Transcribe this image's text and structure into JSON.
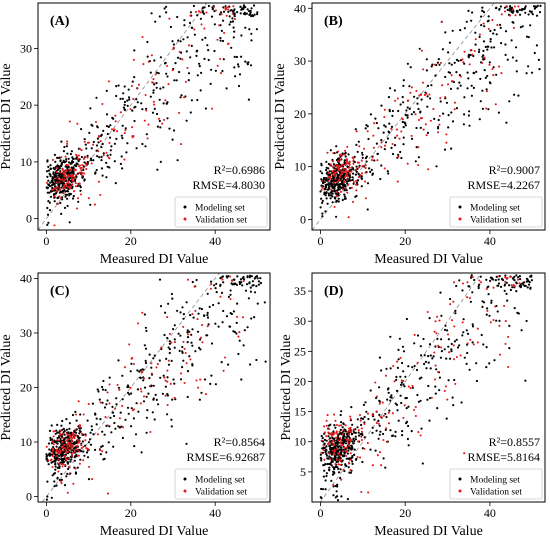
{
  "chart_data": [
    {
      "type": "scatter",
      "panel_label": "(A)",
      "xlabel": "Measured DI Value",
      "ylabel": "Predicted DI Value",
      "xlim": [
        -2,
        53
      ],
      "ylim": [
        -2,
        38
      ],
      "xticks": [
        "0",
        "20",
        "40"
      ],
      "yticks": [
        "0",
        "10",
        "20",
        "30"
      ],
      "stats": [
        "R²=0.6986",
        "RMSE=4.8030"
      ],
      "reference_line": "y = x (dashed grey)",
      "legend": {
        "placement": "lower-right",
        "entries": [
          "Modeling set",
          "Validation set"
        ]
      },
      "series": [
        {
          "name": "Modeling set",
          "color": "#000000",
          "n_points": 650,
          "x_range": [
            0,
            50
          ],
          "cluster_center": [
            4,
            6
          ]
        },
        {
          "name": "Validation set",
          "color": "#e41a1c",
          "n_points": 220,
          "x_range": [
            1,
            45
          ],
          "cluster_center": [
            5,
            6
          ]
        }
      ]
    },
    {
      "type": "scatter",
      "panel_label": "(B)",
      "xlabel": "Measured DI Value",
      "ylabel": "Predicted DI Value",
      "xlim": [
        -2,
        53
      ],
      "ylim": [
        -2,
        41
      ],
      "xticks": [
        "0",
        "20",
        "40"
      ],
      "yticks": [
        "0",
        "10",
        "20",
        "30",
        "40"
      ],
      "stats": [
        "R²=0.9007",
        "RMSE=4.2267"
      ],
      "reference_line": "y = x (dashed grey)",
      "legend": {
        "placement": "lower-right",
        "entries": [
          "Modeling set",
          "Validation set"
        ]
      },
      "series": [
        {
          "name": "Modeling set",
          "color": "#000000",
          "n_points": 650,
          "x_range": [
            0,
            52
          ],
          "cluster_center": [
            4,
            7
          ]
        },
        {
          "name": "Validation set",
          "color": "#e41a1c",
          "n_points": 220,
          "x_range": [
            1,
            47
          ],
          "cluster_center": [
            5,
            8
          ]
        }
      ]
    },
    {
      "type": "scatter",
      "panel_label": "(C)",
      "xlabel": "Measured DI Value",
      "ylabel": "Predicted DI Value",
      "xlim": [
        -2,
        53
      ],
      "ylim": [
        -1,
        41
      ],
      "xticks": [
        "0",
        "20",
        "40"
      ],
      "yticks": [
        "0",
        "10",
        "20",
        "30",
        "40"
      ],
      "stats": [
        "R²=0.8564",
        "RMSE=6.92687"
      ],
      "reference_line": "y = x (dashed grey)",
      "legend": {
        "placement": "lower-right",
        "entries": [
          "Modeling set",
          "Validation set"
        ]
      },
      "series": [
        {
          "name": "Modeling set",
          "color": "#000000",
          "n_points": 650,
          "x_range": [
            0,
            52
          ],
          "cluster_center": [
            4,
            8
          ]
        },
        {
          "name": "Validation set",
          "color": "#e41a1c",
          "n_points": 220,
          "x_range": [
            1,
            47
          ],
          "cluster_center": [
            5,
            8
          ]
        }
      ]
    },
    {
      "type": "scatter",
      "panel_label": "(D)",
      "xlabel": "Measured DI Value",
      "ylabel": "Predicted DI Value",
      "xlim": [
        -2,
        53
      ],
      "ylim": [
        0,
        38
      ],
      "xticks": [
        "0",
        "20",
        "40"
      ],
      "yticks": [
        "5",
        "10",
        "15",
        "20",
        "25",
        "30",
        "35"
      ],
      "stats": [
        "R²=0.8557",
        "RMSE=5.8164"
      ],
      "reference_line": "y = x (dashed grey)",
      "legend": {
        "placement": "lower-right",
        "entries": [
          "Modeling set",
          "Validation set"
        ]
      },
      "series": [
        {
          "name": "Modeling set",
          "color": "#000000",
          "n_points": 650,
          "x_range": [
            0,
            50
          ],
          "cluster_center": [
            4,
            8
          ]
        },
        {
          "name": "Validation set",
          "color": "#e41a1c",
          "n_points": 220,
          "x_range": [
            1,
            47
          ],
          "cluster_center": [
            5,
            9
          ]
        }
      ]
    }
  ]
}
